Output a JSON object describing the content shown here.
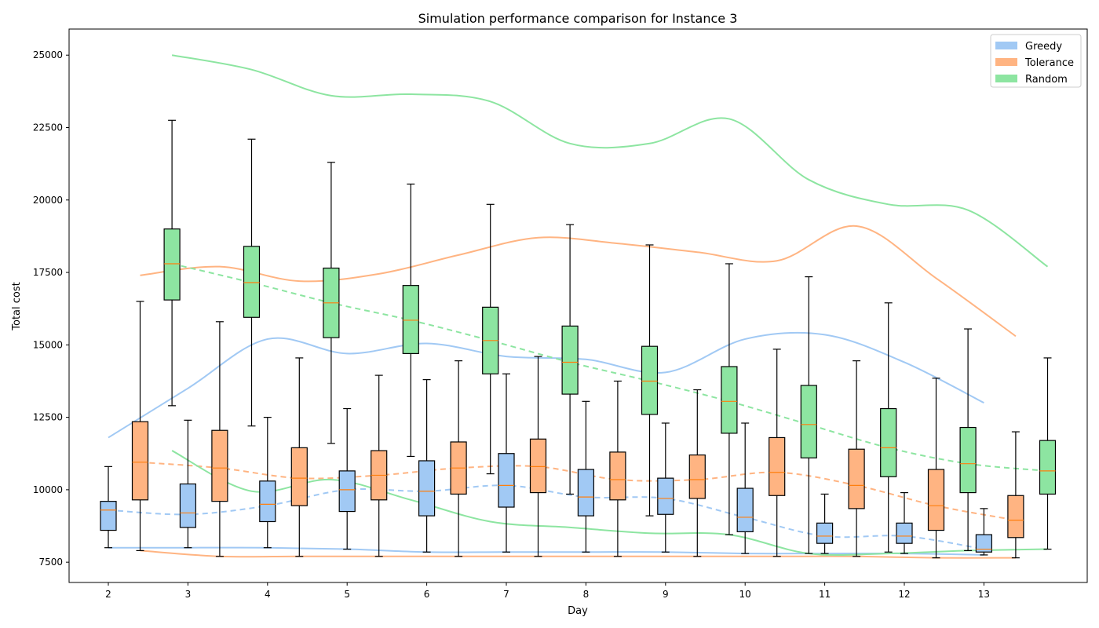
{
  "chart_data": {
    "type": "box",
    "title": "Simulation performance comparison for Instance 3",
    "xlabel": "Day",
    "ylabel": "Total cost",
    "x_ticks": [
      "2",
      "3",
      "4",
      "5",
      "6",
      "7",
      "8",
      "9",
      "10",
      "11",
      "12",
      "13"
    ],
    "y_ticks": [
      "7500",
      "10000",
      "12500",
      "15000",
      "17500",
      "20000",
      "22500",
      "25000"
    ],
    "ylim": [
      6800,
      25900
    ],
    "legend_position": "top-right",
    "colors": {
      "Greedy": "#a1c9f4",
      "Tolerance": "#ffb482",
      "Random": "#8de5a1",
      "median": "#ff7f0e",
      "whisker": "#000000"
    },
    "series": [
      {
        "name": "Greedy",
        "boxes": [
          {
            "day": 2,
            "whislo": 8000,
            "q1": 8600,
            "med": 9300,
            "q3": 9600,
            "whishi": 10800
          },
          {
            "day": 3,
            "whislo": 8000,
            "q1": 8700,
            "med": 9200,
            "q3": 10200,
            "whishi": 12400
          },
          {
            "day": 4,
            "whislo": 8000,
            "q1": 8900,
            "med": 9500,
            "q3": 10300,
            "whishi": 12500
          },
          {
            "day": 5,
            "whislo": 7950,
            "q1": 9250,
            "med": 10000,
            "q3": 10650,
            "whishi": 12800
          },
          {
            "day": 6,
            "whislo": 7850,
            "q1": 9100,
            "med": 9950,
            "q3": 11000,
            "whishi": 13800
          },
          {
            "day": 7,
            "whislo": 7850,
            "q1": 9400,
            "med": 10150,
            "q3": 11250,
            "whishi": 14000
          },
          {
            "day": 8,
            "whislo": 7850,
            "q1": 9100,
            "med": 9750,
            "q3": 10700,
            "whishi": 13050
          },
          {
            "day": 9,
            "whislo": 7850,
            "q1": 9150,
            "med": 9700,
            "q3": 10400,
            "whishi": 12300
          },
          {
            "day": 10,
            "whislo": 7800,
            "q1": 8550,
            "med": 9050,
            "q3": 10050,
            "whishi": 12300
          },
          {
            "day": 11,
            "whislo": 7800,
            "q1": 8150,
            "med": 8400,
            "q3": 8850,
            "whishi": 9850
          },
          {
            "day": 12,
            "whislo": 7800,
            "q1": 8150,
            "med": 8400,
            "q3": 8850,
            "whishi": 9900
          },
          {
            "day": 13,
            "whislo": 7750,
            "q1": 7850,
            "med": 7950,
            "q3": 8450,
            "whishi": 9350
          }
        ],
        "mean_line": [
          9300,
          9150,
          9450,
          10000,
          9950,
          10150,
          9750,
          9700,
          9050,
          8400,
          8400,
          7950
        ],
        "max_line": [
          11800,
          13500,
          15200,
          14700,
          15050,
          14600,
          14500,
          14050,
          15200,
          15350,
          14400,
          13000
        ],
        "min_line": [
          8000,
          8000,
          8000,
          7950,
          7850,
          7850,
          7850,
          7850,
          7800,
          7800,
          7800,
          7750
        ]
      },
      {
        "name": "Tolerance",
        "boxes": [
          {
            "day": 2,
            "whislo": 7900,
            "q1": 9650,
            "med": 10950,
            "q3": 12350,
            "whishi": 16500
          },
          {
            "day": 3,
            "whislo": 7700,
            "q1": 9600,
            "med": 10750,
            "q3": 12050,
            "whishi": 15800
          },
          {
            "day": 4,
            "whislo": 7700,
            "q1": 9450,
            "med": 10400,
            "q3": 11450,
            "whishi": 14550
          },
          {
            "day": 5,
            "whislo": 7700,
            "q1": 9650,
            "med": 10500,
            "q3": 11350,
            "whishi": 13950
          },
          {
            "day": 6,
            "whislo": 7700,
            "q1": 9850,
            "med": 10750,
            "q3": 11650,
            "whishi": 14450
          },
          {
            "day": 7,
            "whislo": 7700,
            "q1": 9900,
            "med": 10800,
            "q3": 11750,
            "whishi": 14600
          },
          {
            "day": 8,
            "whislo": 7700,
            "q1": 9650,
            "med": 10350,
            "q3": 11300,
            "whishi": 13750
          },
          {
            "day": 9,
            "whislo": 7700,
            "q1": 9700,
            "med": 10350,
            "q3": 11200,
            "whishi": 13450
          },
          {
            "day": 10,
            "whislo": 7700,
            "q1": 9800,
            "med": 10600,
            "q3": 11800,
            "whishi": 14850
          },
          {
            "day": 11,
            "whislo": 7700,
            "q1": 9350,
            "med": 10150,
            "q3": 11400,
            "whishi": 14450
          },
          {
            "day": 12,
            "whislo": 7650,
            "q1": 8600,
            "med": 9450,
            "q3": 10700,
            "whishi": 13850
          },
          {
            "day": 13,
            "whislo": 7650,
            "q1": 8350,
            "med": 8950,
            "q3": 9800,
            "whishi": 12000
          }
        ],
        "mean_line": [
          10950,
          10750,
          10400,
          10500,
          10750,
          10800,
          10350,
          10350,
          10600,
          10150,
          9450,
          8950
        ],
        "max_line": [
          17400,
          17700,
          17200,
          17450,
          18100,
          18700,
          18500,
          18200,
          17900,
          19100,
          17300,
          15300
        ],
        "min_line": [
          7900,
          7700,
          7700,
          7700,
          7700,
          7700,
          7700,
          7700,
          7700,
          7700,
          7650,
          7650
        ]
      },
      {
        "name": "Random",
        "boxes": [
          {
            "day": 2,
            "whislo": 12900,
            "q1": 16550,
            "med": 17800,
            "q3": 19000,
            "whishi": 22750
          },
          {
            "day": 3,
            "whislo": 12200,
            "q1": 15950,
            "med": 17150,
            "q3": 18400,
            "whishi": 22100
          },
          {
            "day": 4,
            "whislo": 11600,
            "q1": 15250,
            "med": 16450,
            "q3": 17650,
            "whishi": 21300
          },
          {
            "day": 5,
            "whislo": 11150,
            "q1": 14700,
            "med": 15850,
            "q3": 17050,
            "whishi": 20550
          },
          {
            "day": 6,
            "whislo": 10550,
            "q1": 14000,
            "med": 15150,
            "q3": 16300,
            "whishi": 19850
          },
          {
            "day": 7,
            "whislo": 9850,
            "q1": 13300,
            "med": 14400,
            "q3": 15650,
            "whishi": 19150
          },
          {
            "day": 8,
            "whislo": 9100,
            "q1": 12600,
            "med": 13750,
            "q3": 14950,
            "whishi": 18450
          },
          {
            "day": 9,
            "whislo": 8450,
            "q1": 11950,
            "med": 13050,
            "q3": 14250,
            "whishi": 17800
          },
          {
            "day": 10,
            "whislo": 7800,
            "q1": 11100,
            "med": 12250,
            "q3": 13600,
            "whishi": 17350
          },
          {
            "day": 11,
            "whislo": 7850,
            "q1": 10450,
            "med": 11450,
            "q3": 12800,
            "whishi": 16450
          },
          {
            "day": 12,
            "whislo": 7900,
            "q1": 9900,
            "med": 10900,
            "q3": 12150,
            "whishi": 15550
          },
          {
            "day": 13,
            "whislo": 7950,
            "q1": 9850,
            "med": 10650,
            "q3": 11700,
            "whishi": 14550
          }
        ],
        "mean_line": [
          17800,
          17150,
          16450,
          15850,
          15150,
          14400,
          13750,
          13050,
          12250,
          11450,
          10900,
          10650
        ],
        "max_line": [
          25000,
          24500,
          23600,
          23650,
          23400,
          21950,
          21950,
          22800,
          20700,
          19850,
          19650,
          17700
        ],
        "min_line": [
          11350,
          9950,
          10350,
          9650,
          8900,
          8700,
          8500,
          8450,
          7800,
          7800,
          7900,
          7950
        ]
      }
    ]
  }
}
